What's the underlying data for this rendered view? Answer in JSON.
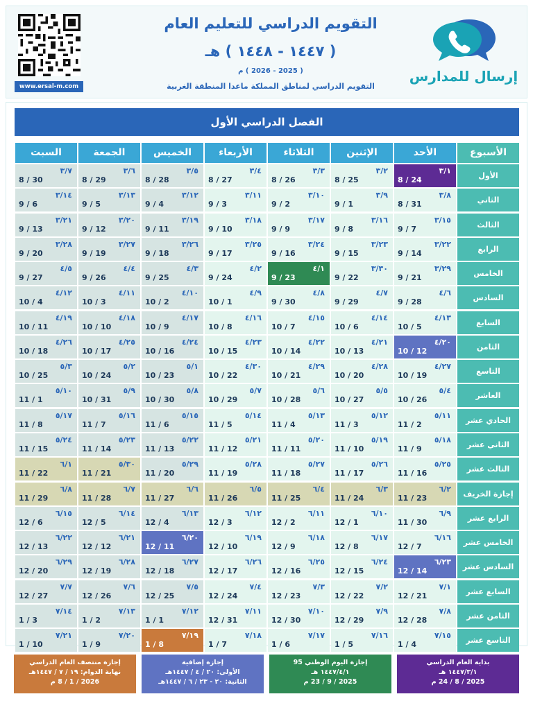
{
  "header": {
    "title": "التقويم الدراسي للتعليم العام",
    "hijri_years": "( ١٤٤٧ - ١٤٤٨ ) هـ",
    "greg_years": "( 2025 - 2026 ) م",
    "subtitle": "التقويم الدراسي لمناطق المملكة ماعدا المنطقة الغربية",
    "website": "www.ersal-m.com",
    "brand": "إرسال للمدارس",
    "qr_icon": "qr-code",
    "logo_icon": "chat-phone-icon"
  },
  "semester_title": "الفصل الدراسي الأول",
  "colors": {
    "header_blue": "#2a66b8",
    "week_teal": "#4cbcb2",
    "cell_light": "#e3f5ee",
    "cell_gray": "#d6e4e2",
    "holiday_tan": "#d7d8b4",
    "purple": "#5d2b94",
    "green": "#2f8a54",
    "blue_holiday": "#5f73c2",
    "orange": "#c97a3c"
  },
  "days": [
    "الأسبوع",
    "الأحد",
    "الإثنين",
    "الثلاثاء",
    "الأربعاء",
    "الخميس",
    "الجمعة",
    "السبت"
  ],
  "weeks": [
    {
      "label": "الأول",
      "style": "normal",
      "cells": [
        {
          "h": "٣/١",
          "g": "8 / 24",
          "mark": "start"
        },
        {
          "h": "٣/٢",
          "g": "8 / 25"
        },
        {
          "h": "٣/٣",
          "g": "8 / 26"
        },
        {
          "h": "٣/٤",
          "g": "8 / 27"
        },
        {
          "h": "٣/٥",
          "g": "8 / 28"
        },
        {
          "h": "٣/٦",
          "g": "8 / 29"
        },
        {
          "h": "٣/٧",
          "g": "8 / 30"
        }
      ]
    },
    {
      "label": "الثاني",
      "style": "normal",
      "cells": [
        {
          "h": "٣/٨",
          "g": "8 / 31"
        },
        {
          "h": "٣/٩",
          "g": "9 / 1"
        },
        {
          "h": "٣/١٠",
          "g": "9 / 2"
        },
        {
          "h": "٣/١١",
          "g": "9 / 3"
        },
        {
          "h": "٣/١٢",
          "g": "9 / 4"
        },
        {
          "h": "٣/١٣",
          "g": "9 / 5"
        },
        {
          "h": "٣/١٤",
          "g": "9 / 6"
        }
      ]
    },
    {
      "label": "الثالث",
      "style": "normal",
      "cells": [
        {
          "h": "٣/١٥",
          "g": "9 / 7"
        },
        {
          "h": "٣/١٦",
          "g": "9 / 8"
        },
        {
          "h": "٣/١٧",
          "g": "9 / 9"
        },
        {
          "h": "٣/١٨",
          "g": "9 / 10"
        },
        {
          "h": "٣/١٩",
          "g": "9 / 11"
        },
        {
          "h": "٣/٢٠",
          "g": "9 / 12"
        },
        {
          "h": "٣/٢١",
          "g": "9 / 13"
        }
      ]
    },
    {
      "label": "الرابع",
      "style": "normal",
      "cells": [
        {
          "h": "٣/٢٢",
          "g": "9 / 14"
        },
        {
          "h": "٣/٢٣",
          "g": "9 / 15"
        },
        {
          "h": "٣/٢٤",
          "g": "9 / 16"
        },
        {
          "h": "٣/٢٥",
          "g": "9 / 17"
        },
        {
          "h": "٣/٢٦",
          "g": "9 / 18"
        },
        {
          "h": "٣/٢٧",
          "g": "9 / 19"
        },
        {
          "h": "٣/٢٨",
          "g": "9 / 20"
        }
      ]
    },
    {
      "label": "الخامس",
      "style": "normal",
      "cells": [
        {
          "h": "٣/٢٩",
          "g": "9 / 21"
        },
        {
          "h": "٣/٣٠",
          "g": "9 / 22"
        },
        {
          "h": "٤/١",
          "g": "9 / 23",
          "mark": "national"
        },
        {
          "h": "٤/٢",
          "g": "9 / 24"
        },
        {
          "h": "٤/٣",
          "g": "9 / 25"
        },
        {
          "h": "٤/٤",
          "g": "9 / 26"
        },
        {
          "h": "٤/٥",
          "g": "9 / 27"
        }
      ]
    },
    {
      "label": "السادس",
      "style": "normal",
      "cells": [
        {
          "h": "٤/٦",
          "g": "9 / 28"
        },
        {
          "h": "٤/٧",
          "g": "9 / 29"
        },
        {
          "h": "٤/٨",
          "g": "9 / 30"
        },
        {
          "h": "٤/٩",
          "g": "10 / 1"
        },
        {
          "h": "٤/١٠",
          "g": "10 / 2"
        },
        {
          "h": "٤/١١",
          "g": "10 / 3"
        },
        {
          "h": "٤/١٢",
          "g": "10 / 4"
        }
      ]
    },
    {
      "label": "السابع",
      "style": "normal",
      "cells": [
        {
          "h": "٤/١٣",
          "g": "10 / 5"
        },
        {
          "h": "٤/١٤",
          "g": "10 / 6"
        },
        {
          "h": "٤/١٥",
          "g": "10 / 7"
        },
        {
          "h": "٤/١٦",
          "g": "10 / 8"
        },
        {
          "h": "٤/١٧",
          "g": "10 / 9"
        },
        {
          "h": "٤/١٨",
          "g": "10 / 10"
        },
        {
          "h": "٤/١٩",
          "g": "10 / 11"
        }
      ]
    },
    {
      "label": "الثامن",
      "style": "normal",
      "cells": [
        {
          "h": "٤/٢٠",
          "g": "10 / 12",
          "mark": "extra"
        },
        {
          "h": "٤/٢١",
          "g": "10 / 13"
        },
        {
          "h": "٤/٢٢",
          "g": "10 / 14"
        },
        {
          "h": "٤/٢٣",
          "g": "10 / 15"
        },
        {
          "h": "٤/٢٤",
          "g": "10 / 16"
        },
        {
          "h": "٤/٢٥",
          "g": "10 / 17"
        },
        {
          "h": "٤/٢٦",
          "g": "10 / 18"
        }
      ]
    },
    {
      "label": "التاسع",
      "style": "normal",
      "cells": [
        {
          "h": "٤/٢٧",
          "g": "10 / 19"
        },
        {
          "h": "٤/٢٨",
          "g": "10 / 20"
        },
        {
          "h": "٤/٢٩",
          "g": "10 / 21"
        },
        {
          "h": "٤/٣٠",
          "g": "10 / 22"
        },
        {
          "h": "٥/١",
          "g": "10 / 23"
        },
        {
          "h": "٥/٢",
          "g": "10 / 24"
        },
        {
          "h": "٥/٣",
          "g": "10 / 25"
        }
      ]
    },
    {
      "label": "العاشر",
      "style": "normal",
      "cells": [
        {
          "h": "٥/٤",
          "g": "10 / 26"
        },
        {
          "h": "٥/٥",
          "g": "10 / 27"
        },
        {
          "h": "٥/٦",
          "g": "10 / 28"
        },
        {
          "h": "٥/٧",
          "g": "10 / 29"
        },
        {
          "h": "٥/٨",
          "g": "10 / 30"
        },
        {
          "h": "٥/٩",
          "g": "10 / 31"
        },
        {
          "h": "٥/١٠",
          "g": "11 / 1"
        }
      ]
    },
    {
      "label": "الحادي عشر",
      "style": "normal",
      "cells": [
        {
          "h": "٥/١١",
          "g": "11 / 2"
        },
        {
          "h": "٥/١٢",
          "g": "11 / 3"
        },
        {
          "h": "٥/١٣",
          "g": "11 / 4"
        },
        {
          "h": "٥/١٤",
          "g": "11 / 5"
        },
        {
          "h": "٥/١٥",
          "g": "11 / 6"
        },
        {
          "h": "٥/١٦",
          "g": "11 / 7"
        },
        {
          "h": "٥/١٧",
          "g": "11 / 8"
        }
      ]
    },
    {
      "label": "الثاني عشر",
      "style": "normal",
      "cells": [
        {
          "h": "٥/١٨",
          "g": "11 / 9"
        },
        {
          "h": "٥/١٩",
          "g": "11 / 10"
        },
        {
          "h": "٥/٢٠",
          "g": "11 / 11"
        },
        {
          "h": "٥/٢١",
          "g": "11 / 12"
        },
        {
          "h": "٥/٢٢",
          "g": "11 / 13"
        },
        {
          "h": "٥/٢٣",
          "g": "11 / 14"
        },
        {
          "h": "٥/٢٤",
          "g": "11 / 15"
        }
      ]
    },
    {
      "label": "الثالث عشر",
      "style": "normal",
      "cells": [
        {
          "h": "٥/٢٥",
          "g": "11 / 16"
        },
        {
          "h": "٥/٢٦",
          "g": "11 / 17"
        },
        {
          "h": "٥/٢٧",
          "g": "11 / 18"
        },
        {
          "h": "٥/٢٨",
          "g": "11 / 19"
        },
        {
          "h": "٥/٢٩",
          "g": "11 / 20"
        },
        {
          "h": "٥/٣٠",
          "g": "11 / 21",
          "mark": "tan"
        },
        {
          "h": "٦/١",
          "g": "11 / 22",
          "mark": "tan"
        }
      ]
    },
    {
      "label": "إجازة الخريف",
      "style": "holiday",
      "cells": [
        {
          "h": "٦/٢",
          "g": "11 / 23"
        },
        {
          "h": "٦/٣",
          "g": "11 / 24"
        },
        {
          "h": "٦/٤",
          "g": "11 / 25"
        },
        {
          "h": "٦/٥",
          "g": "11 / 26"
        },
        {
          "h": "٦/٦",
          "g": "11 / 27"
        },
        {
          "h": "٦/٧",
          "g": "11 / 28"
        },
        {
          "h": "٦/٨",
          "g": "11 / 29"
        }
      ]
    },
    {
      "label": "الرابع عشر",
      "style": "normal",
      "cells": [
        {
          "h": "٦/٩",
          "g": "11 / 30"
        },
        {
          "h": "٦/١٠",
          "g": "12 / 1"
        },
        {
          "h": "٦/١١",
          "g": "12 / 2"
        },
        {
          "h": "٦/١٢",
          "g": "12 / 3"
        },
        {
          "h": "٦/١٣",
          "g": "12 / 4"
        },
        {
          "h": "٦/١٤",
          "g": "12 / 5"
        },
        {
          "h": "٦/١٥",
          "g": "12 / 6"
        }
      ]
    },
    {
      "label": "الخامس عشر",
      "style": "normal",
      "cells": [
        {
          "h": "٦/١٦",
          "g": "12 / 7"
        },
        {
          "h": "٦/١٧",
          "g": "12 / 8"
        },
        {
          "h": "٦/١٨",
          "g": "12 / 9"
        },
        {
          "h": "٦/١٩",
          "g": "12 / 10"
        },
        {
          "h": "٦/٢٠",
          "g": "12 / 11",
          "mark": "extra"
        },
        {
          "h": "٦/٢١",
          "g": "12 / 12"
        },
        {
          "h": "٦/٢٢",
          "g": "12 / 13"
        }
      ]
    },
    {
      "label": "السادس عشر",
      "style": "normal",
      "cells": [
        {
          "h": "٦/٢٣",
          "g": "12 / 14",
          "mark": "extra"
        },
        {
          "h": "٦/٢٤",
          "g": "12 / 15"
        },
        {
          "h": "٦/٢٥",
          "g": "12 / 16"
        },
        {
          "h": "٦/٢٦",
          "g": "12 / 17"
        },
        {
          "h": "٦/٢٧",
          "g": "12 / 18"
        },
        {
          "h": "٦/٢٨",
          "g": "12 / 19"
        },
        {
          "h": "٦/٢٩",
          "g": "12 / 20"
        }
      ]
    },
    {
      "label": "السابع عشر",
      "style": "normal",
      "cells": [
        {
          "h": "٧/١",
          "g": "12 / 21"
        },
        {
          "h": "٧/٢",
          "g": "12 / 22"
        },
        {
          "h": "٧/٣",
          "g": "12 / 23"
        },
        {
          "h": "٧/٤",
          "g": "12 / 24"
        },
        {
          "h": "٧/٥",
          "g": "12 / 25"
        },
        {
          "h": "٧/٦",
          "g": "12 / 26"
        },
        {
          "h": "٧/٧",
          "g": "12 / 27"
        }
      ]
    },
    {
      "label": "الثامن عشر",
      "style": "normal",
      "cells": [
        {
          "h": "٧/٨",
          "g": "12 / 28"
        },
        {
          "h": "٧/٩",
          "g": "12 / 29"
        },
        {
          "h": "٧/١٠",
          "g": "12 / 30"
        },
        {
          "h": "٧/١١",
          "g": "12 / 31"
        },
        {
          "h": "٧/١٢",
          "g": "1 / 1"
        },
        {
          "h": "٧/١٣",
          "g": "1 / 2"
        },
        {
          "h": "٧/١٤",
          "g": "1 / 3"
        }
      ]
    },
    {
      "label": "التاسع عشر",
      "style": "normal",
      "cells": [
        {
          "h": "٧/١٥",
          "g": "1 / 4"
        },
        {
          "h": "٧/١٦",
          "g": "1 / 5"
        },
        {
          "h": "٧/١٧",
          "g": "1 / 6"
        },
        {
          "h": "٧/١٨",
          "g": "1 / 7"
        },
        {
          "h": "٧/١٩",
          "g": "1 / 8",
          "mark": "mid"
        },
        {
          "h": "٧/٢٠",
          "g": "1 / 9"
        },
        {
          "h": "٧/٢١",
          "g": "1 / 10"
        }
      ]
    }
  ],
  "footer": [
    {
      "key": "start",
      "color": "#5d2b94",
      "lines": [
        "بداية العام الدراسي",
        "١٤٤٧/٣/١ هـ",
        "2025 / 8 / 24 م"
      ]
    },
    {
      "key": "national",
      "color": "#2f8a54",
      "lines": [
        "إجازة اليوم الوطني 95",
        "١٤٤٧/٤/١ هـ",
        "2025 / 9 / 23 م"
      ]
    },
    {
      "key": "extra",
      "color": "#5f73c2",
      "lines": [
        "إجازة إضافية",
        "الأولى: ٢٠ / ٤ / ١٤٤٧هـ",
        "الثانية: ٢٠ - ٢٣ / ٦ / ١٤٤٧هـ"
      ]
    },
    {
      "key": "mid",
      "color": "#c97a3c",
      "lines": [
        "إجازة منتصف العام الدراسي",
        "نهاية الدوام: ١٩ / ٧ / ١٤٤٧هـ",
        "2026 / 1 / 8 م"
      ]
    }
  ]
}
